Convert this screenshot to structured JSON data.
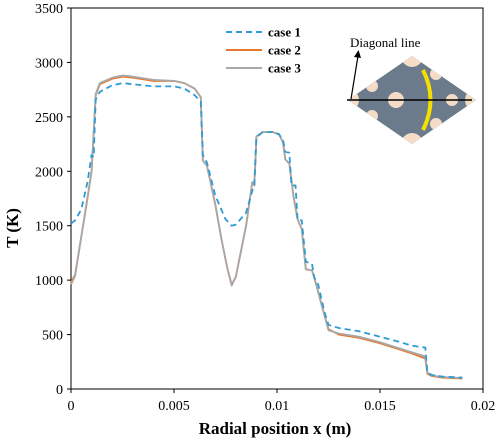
{
  "chart_data": {
    "type": "line",
    "xlabel": "Radial position x (m)",
    "ylabel": "T (K)",
    "xlim": [
      0,
      0.02
    ],
    "ylim": [
      0,
      3500
    ],
    "xticks": [
      0,
      0.005,
      0.01,
      0.015,
      0.02
    ],
    "xtick_labels": [
      "0",
      "0.005",
      "0.01",
      "0.015",
      "0.02"
    ],
    "yticks": [
      0,
      500,
      1000,
      1500,
      2000,
      2500,
      3000,
      3500
    ],
    "ytick_labels": [
      "0",
      "500",
      "1000",
      "1500",
      "2000",
      "2500",
      "3000",
      "3500"
    ],
    "grid": false,
    "legend_position": "top-center",
    "series": [
      {
        "name": "case 1",
        "color": "#2e9bd6",
        "style": "dashed",
        "x": [
          0,
          0.0002,
          0.0005,
          0.0008,
          0.001,
          0.0011,
          0.0012,
          0.0014,
          0.002,
          0.0025,
          0.003,
          0.004,
          0.005,
          0.0055,
          0.006,
          0.0063,
          0.0064,
          0.0066,
          0.007,
          0.0075,
          0.0078,
          0.008,
          0.0085,
          0.0088,
          0.0089,
          0.009,
          0.0093,
          0.0098,
          0.0101,
          0.0103,
          0.0104,
          0.0106,
          0.0107,
          0.0109,
          0.011,
          0.0112,
          0.0114,
          0.0117,
          0.0118,
          0.012,
          0.0123,
          0.0125,
          0.013,
          0.014,
          0.015,
          0.016,
          0.0165,
          0.0172,
          0.0173,
          0.0175,
          0.018,
          0.0185,
          0.019
        ],
        "values": [
          1520,
          1550,
          1650,
          1900,
          2150,
          2130,
          2660,
          2730,
          2790,
          2810,
          2800,
          2780,
          2780,
          2760,
          2700,
          2640,
          2150,
          2080,
          1780,
          1560,
          1500,
          1510,
          1620,
          1820,
          1880,
          2310,
          2360,
          2360,
          2340,
          2280,
          2180,
          2170,
          1870,
          1870,
          1550,
          1550,
          1170,
          1150,
          1030,
          960,
          710,
          590,
          560,
          530,
          480,
          430,
          400,
          380,
          150,
          130,
          115,
          110,
          105
        ]
      },
      {
        "name": "case 2",
        "color": "#e8782d",
        "style": "solid",
        "x": [
          0,
          0.0002,
          0.0005,
          0.0008,
          0.001,
          0.0012,
          0.0014,
          0.002,
          0.0025,
          0.003,
          0.004,
          0.005,
          0.0055,
          0.006,
          0.0063,
          0.0064,
          0.0066,
          0.007,
          0.0073,
          0.0076,
          0.0078,
          0.008,
          0.0085,
          0.0088,
          0.0089,
          0.009,
          0.0093,
          0.0098,
          0.0101,
          0.0103,
          0.0104,
          0.0106,
          0.0108,
          0.011,
          0.0112,
          0.0114,
          0.0117,
          0.0118,
          0.012,
          0.0123,
          0.0125,
          0.013,
          0.014,
          0.015,
          0.016,
          0.0165,
          0.0172,
          0.0173,
          0.0175,
          0.018,
          0.0185,
          0.019
        ],
        "values": [
          980,
          1050,
          1400,
          1750,
          2000,
          2700,
          2800,
          2850,
          2870,
          2860,
          2830,
          2830,
          2810,
          2760,
          2680,
          2100,
          2050,
          1700,
          1380,
          1100,
          960,
          1030,
          1500,
          1900,
          1870,
          2320,
          2360,
          2360,
          2340,
          2260,
          2110,
          2070,
          1770,
          1560,
          1470,
          1100,
          1090,
          1030,
          890,
          680,
          550,
          500,
          470,
          420,
          360,
          330,
          280,
          140,
          120,
          105,
          100,
          95
        ]
      },
      {
        "name": "case 3",
        "color": "#a8a8a8",
        "style": "solid",
        "x": [
          0,
          0.0002,
          0.0005,
          0.0008,
          0.001,
          0.0012,
          0.0014,
          0.002,
          0.0025,
          0.003,
          0.004,
          0.005,
          0.0055,
          0.006,
          0.0063,
          0.0064,
          0.0066,
          0.007,
          0.0073,
          0.0076,
          0.0078,
          0.008,
          0.0085,
          0.0088,
          0.0089,
          0.009,
          0.0093,
          0.0098,
          0.0101,
          0.0103,
          0.0104,
          0.0106,
          0.0108,
          0.011,
          0.0112,
          0.0114,
          0.0117,
          0.0118,
          0.012,
          0.0123,
          0.0125,
          0.013,
          0.014,
          0.015,
          0.016,
          0.0165,
          0.0172,
          0.0173,
          0.0175,
          0.018,
          0.0185,
          0.019
        ],
        "values": [
          960,
          1040,
          1400,
          1760,
          2000,
          2710,
          2810,
          2860,
          2880,
          2870,
          2840,
          2830,
          2810,
          2760,
          2680,
          2100,
          2050,
          1700,
          1380,
          1100,
          950,
          1030,
          1500,
          1900,
          1870,
          2320,
          2360,
          2360,
          2340,
          2260,
          2110,
          2070,
          1770,
          1560,
          1470,
          1100,
          1090,
          1030,
          890,
          680,
          540,
          510,
          480,
          430,
          370,
          340,
          300,
          150,
          125,
          110,
          105,
          100
        ]
      }
    ],
    "inset": {
      "label": "Diagonal line",
      "colors": {
        "plate": "#6b7b8c",
        "hole": "#f5dcc6",
        "ring": "#f5df00",
        "line": "#000000"
      }
    }
  }
}
